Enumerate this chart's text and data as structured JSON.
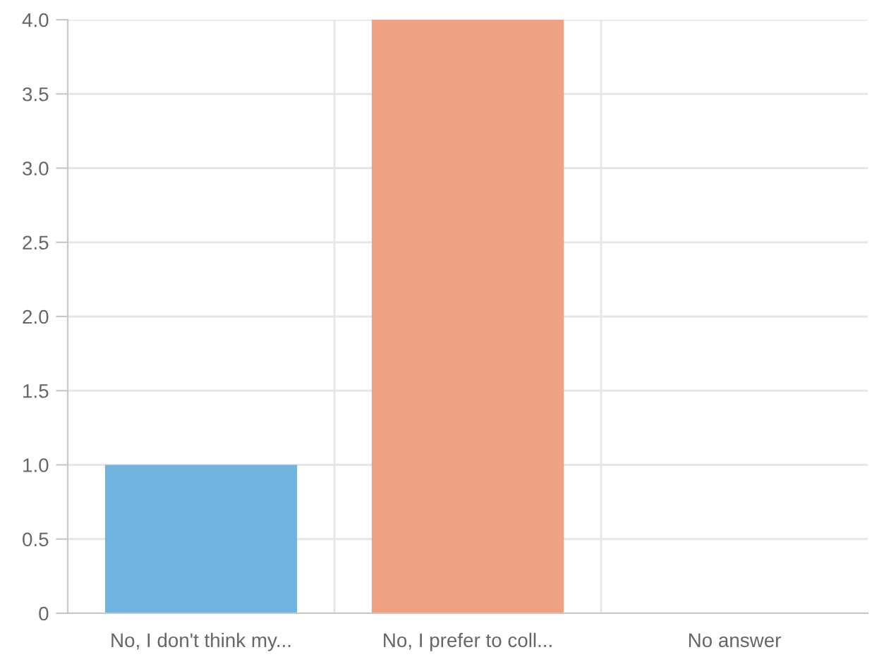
{
  "chart_data": {
    "type": "bar",
    "categories": [
      "No, I don't think my...",
      "No, I prefer to coll...",
      "No answer"
    ],
    "values": [
      1,
      4,
      0
    ],
    "colors": [
      "#6fb3de",
      "#f0a083",
      "#9dcf8f"
    ],
    "ylim": [
      0,
      4
    ],
    "yticks": [
      0,
      0.5,
      {
        "value": 1,
        "label": "1.0"
      },
      1.5,
      {
        "value": 2,
        "label": "2.0"
      },
      2.5,
      {
        "value": 3,
        "label": "3.0"
      },
      3.5,
      {
        "value": 4,
        "label": "4.0"
      }
    ],
    "grid": true
  }
}
